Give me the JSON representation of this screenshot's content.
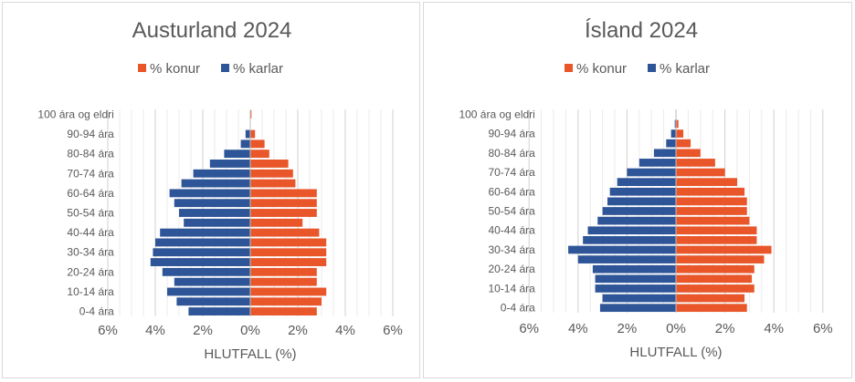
{
  "chart_data": [
    {
      "type": "bar",
      "title": "Austurland 2024",
      "categories": [
        "0-4 ára",
        "5-9 ára",
        "10-14 ára",
        "15-19 ára",
        "20-24 ára",
        "25-29 ára",
        "30-34 ára",
        "35-39 ára",
        "40-44 ára",
        "45-49 ára",
        "50-54 ára",
        "55-59 ára",
        "60-64 ára",
        "65-69 ára",
        "70-74 ára",
        "75-79 ára",
        "80-84 ára",
        "85-89 ára",
        "90-94 ára",
        "95-99 ára",
        "100 ára og eldri"
      ],
      "visible_tick_labels": [
        "0-4 ára",
        "10-14 ára",
        "20-24 ára",
        "30-34 ára",
        "40-44 ára",
        "50-54 ára",
        "60-64 ára",
        "70-74 ára",
        "80-84 ára",
        "90-94 ára",
        "100 ára og eldri"
      ],
      "series": [
        {
          "name": "% konur",
          "color": "#e8562a",
          "values": [
            2.8,
            3.0,
            3.2,
            2.8,
            2.8,
            3.2,
            3.2,
            3.2,
            2.9,
            2.2,
            2.8,
            2.8,
            2.8,
            1.9,
            1.8,
            1.6,
            0.8,
            0.6,
            0.2,
            0.0,
            0.05
          ]
        },
        {
          "name": "% karlar",
          "color": "#2e5597",
          "values": [
            2.6,
            3.1,
            3.5,
            3.2,
            3.7,
            4.2,
            4.1,
            4.0,
            3.8,
            2.8,
            3.0,
            3.2,
            3.4,
            2.9,
            2.4,
            1.7,
            1.1,
            0.4,
            0.2,
            0.0,
            0.0
          ]
        }
      ],
      "xlabel": "HLUTFALL (%)",
      "xlim": [
        -6,
        6
      ],
      "xticks": [
        "6%",
        "4%",
        "2%",
        "0%",
        "2%",
        "4%",
        "6%"
      ],
      "legend": "top"
    },
    {
      "type": "bar",
      "title": "Ísland 2024",
      "categories": [
        "0-4 ára",
        "5-9 ára",
        "10-14 ára",
        "15-19 ára",
        "20-24 ára",
        "25-29 ára",
        "30-34 ára",
        "35-39 ára",
        "40-44 ára",
        "45-49 ára",
        "50-54 ára",
        "55-59 ára",
        "60-64 ára",
        "65-69 ára",
        "70-74 ára",
        "75-79 ára",
        "80-84 ára",
        "85-89 ára",
        "90-94 ára",
        "95-99 ára",
        "100 ára og eldri"
      ],
      "visible_tick_labels": [
        "0-4 ára",
        "10-14 ára",
        "20-24 ára",
        "30-34 ára",
        "40-44 ára",
        "50-54 ára",
        "60-64 ára",
        "70-74 ára",
        "80-84 ára",
        "90-94 ára",
        "100 ára og eldri"
      ],
      "series": [
        {
          "name": "% konur",
          "color": "#e8562a",
          "values": [
            2.9,
            2.8,
            3.2,
            3.1,
            3.2,
            3.6,
            3.9,
            3.3,
            3.3,
            3.0,
            2.9,
            2.9,
            2.8,
            2.5,
            2.0,
            1.6,
            1.0,
            0.6,
            0.3,
            0.1,
            0.02
          ]
        },
        {
          "name": "% karlar",
          "color": "#2e5597",
          "values": [
            3.1,
            3.0,
            3.3,
            3.3,
            3.4,
            4.0,
            4.4,
            3.8,
            3.6,
            3.2,
            3.0,
            2.8,
            2.7,
            2.4,
            2.0,
            1.5,
            0.9,
            0.4,
            0.2,
            0.05,
            0.0
          ]
        }
      ],
      "xlabel": "HLUTFALL (%)",
      "xlim": [
        -6,
        6
      ],
      "xticks": [
        "6%",
        "4%",
        "2%",
        "0%",
        "2%",
        "4%",
        "6%"
      ],
      "legend": "top"
    }
  ]
}
